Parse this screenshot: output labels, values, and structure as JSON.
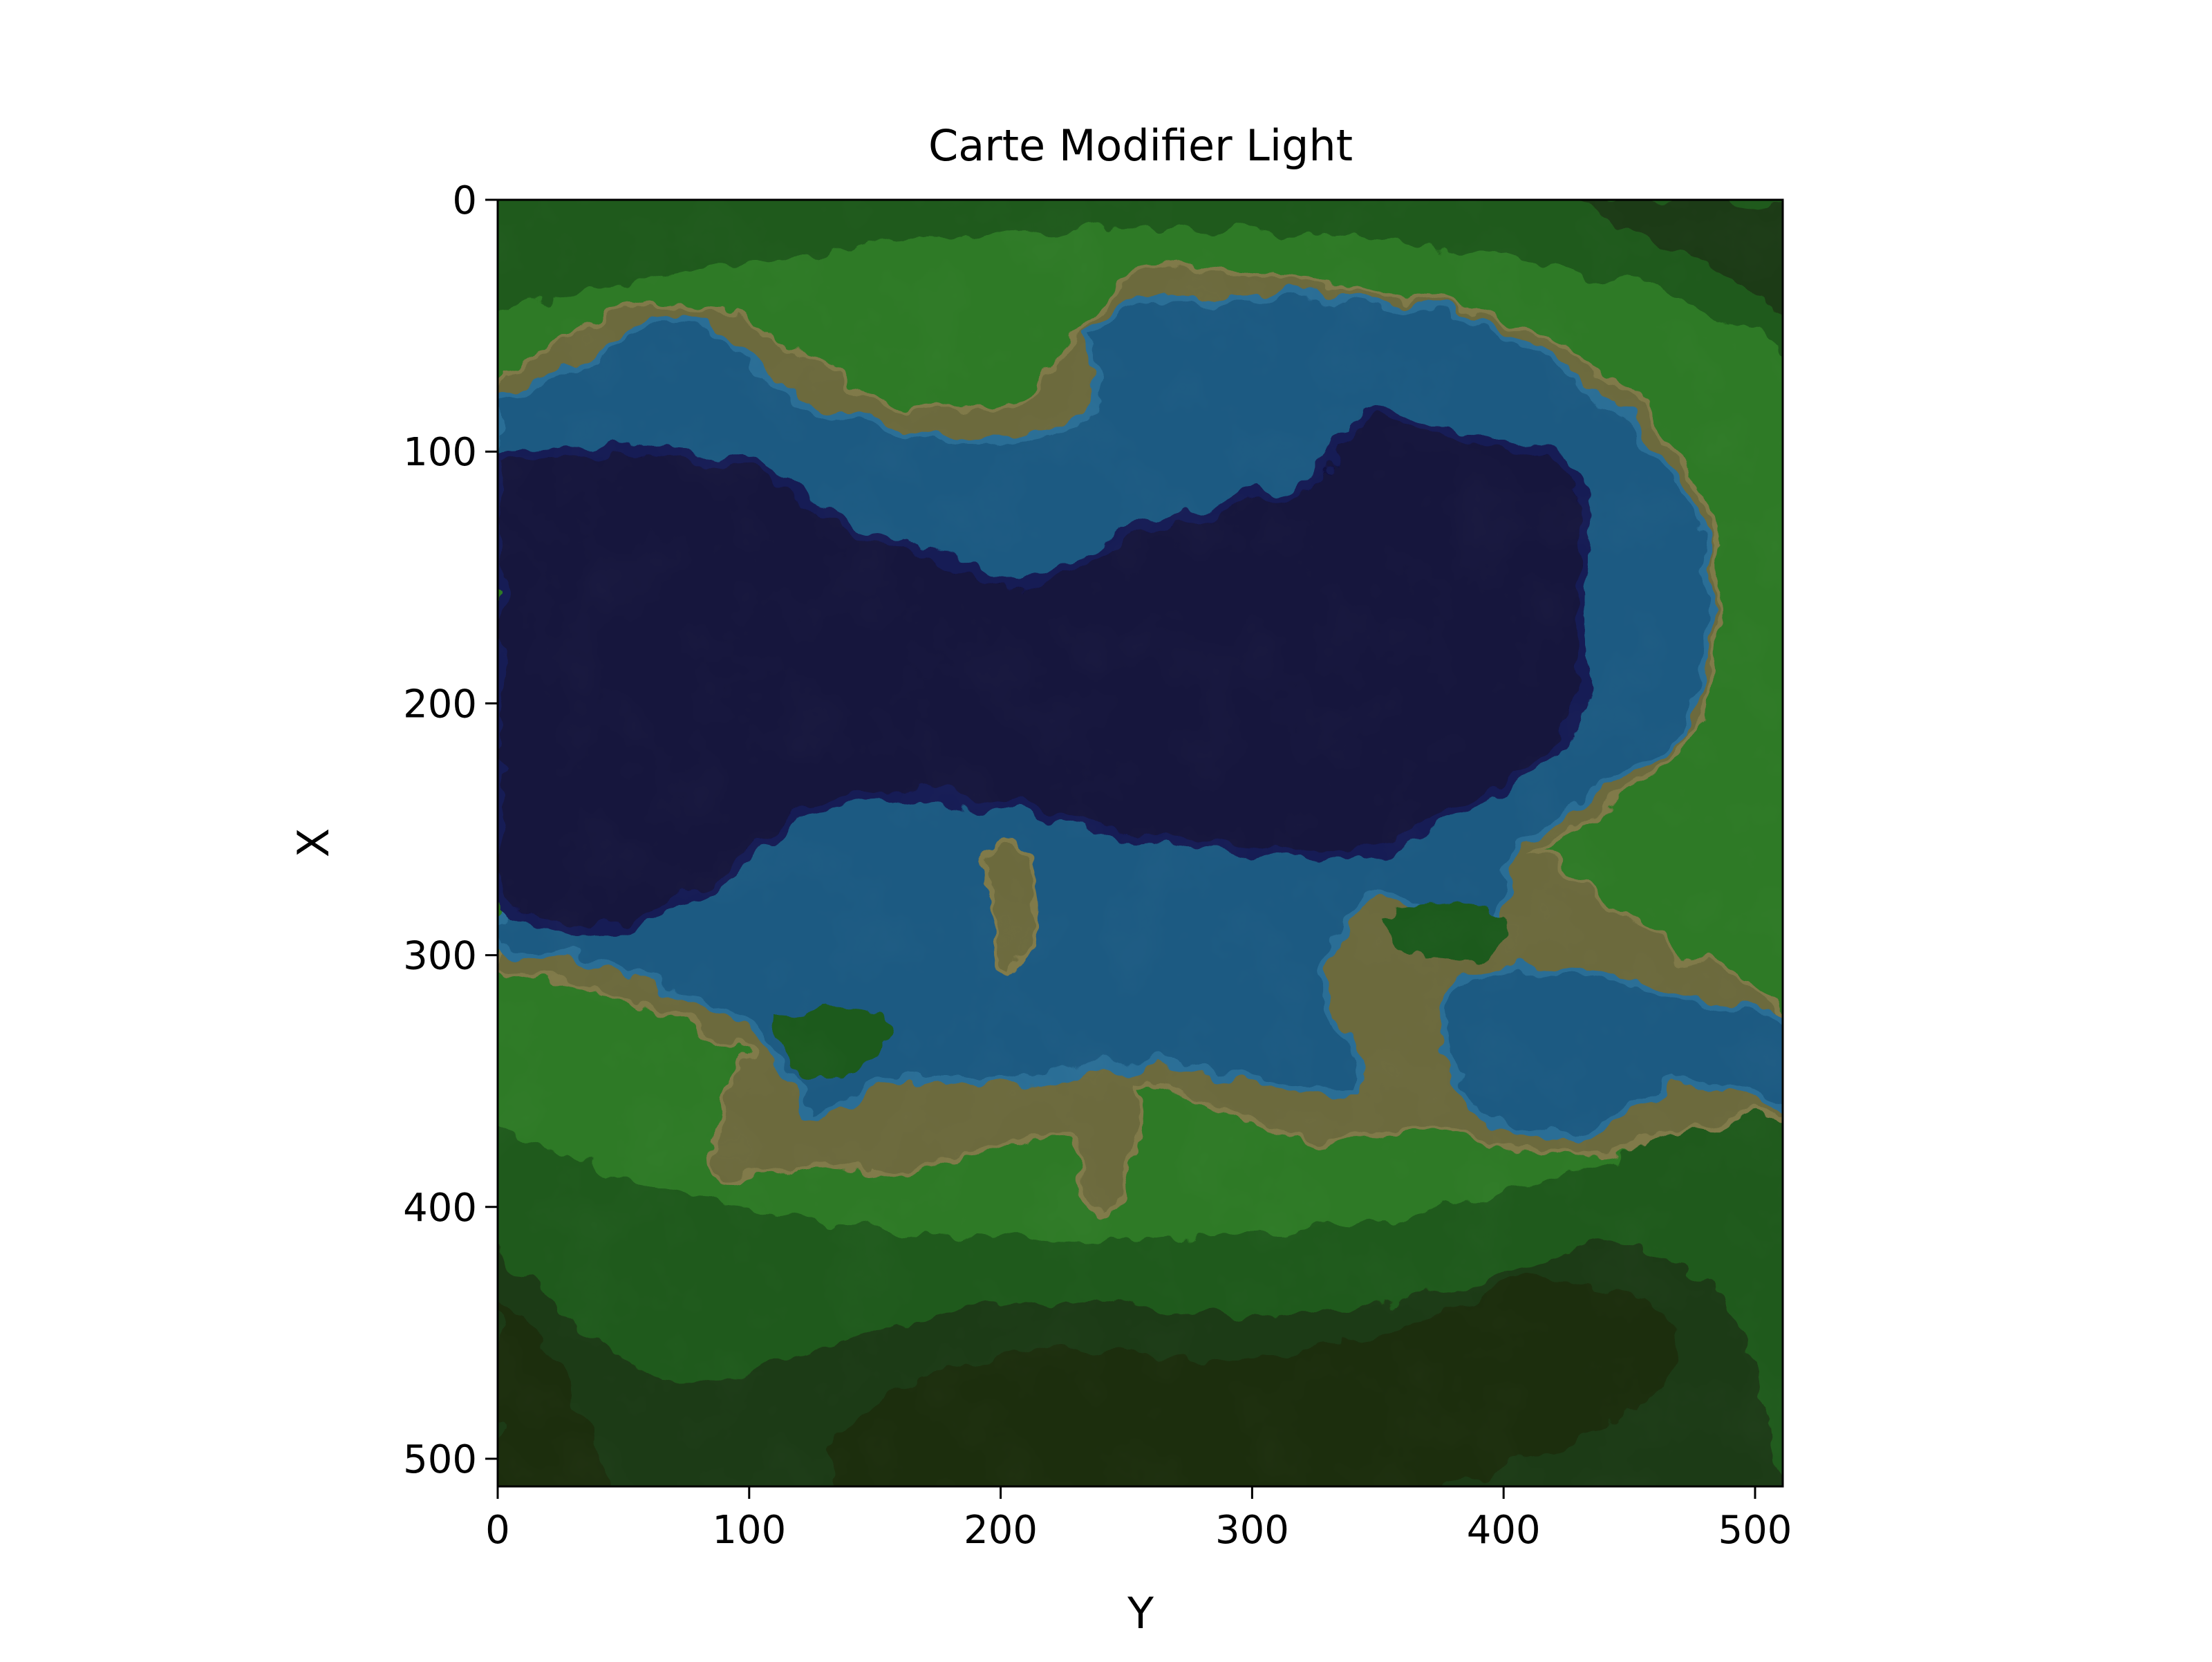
{
  "chart_data": {
    "type": "heatmap",
    "title": "Carte Modifier Light",
    "xlabel": "Y",
    "ylabel": "X",
    "xlim": [
      0,
      511
    ],
    "ylim": [
      511,
      0
    ],
    "xticks": [
      0,
      100,
      200,
      300,
      400,
      500
    ],
    "yticks": [
      0,
      100,
      200,
      300,
      400,
      500
    ],
    "grid": false,
    "legend": "none",
    "colormap": {
      "deep_water": "#12123e",
      "deep_water_edge": "#161a55",
      "shallow_water": "#1d5a82",
      "shallow_water_light": "#2a6e96",
      "sand": "#6c6a3d",
      "sand_light": "#807a4a",
      "grass": "#1f5a1c",
      "grass_light": "#2d7a25",
      "forest_dark": "#1f3a14",
      "forest_darker": "#1a2e10"
    }
  }
}
